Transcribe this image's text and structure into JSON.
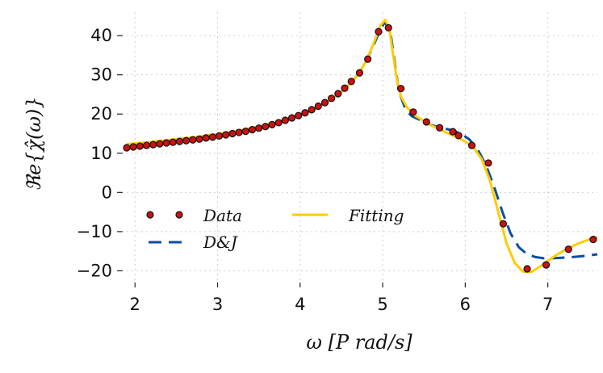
{
  "chart_data": {
    "type": "line",
    "title": "",
    "xlabel": "ω  [P rad/s]",
    "ylabel": "ℜe{χ̂(ω)}",
    "xlim": [
      1.9,
      7.6
    ],
    "ylim": [
      -23,
      46
    ],
    "xticks": [
      2,
      3,
      4,
      5,
      6,
      7
    ],
    "yticks": [
      -20,
      -10,
      0,
      10,
      20,
      30,
      40
    ],
    "xtick_labels": [
      "2",
      "3",
      "4",
      "5",
      "6",
      "7"
    ],
    "ytick_labels": [
      "−20",
      "−10",
      "0",
      "10",
      "20",
      "30",
      "40"
    ],
    "grid": true,
    "legend_position": "lower-left",
    "series": [
      {
        "name": "Data",
        "style": "markers",
        "color": "#cc1111",
        "edge_color": "#111111",
        "x": [
          1.9,
          1.98,
          2.06,
          2.14,
          2.22,
          2.3,
          2.38,
          2.46,
          2.54,
          2.62,
          2.7,
          2.78,
          2.86,
          2.94,
          3.02,
          3.1,
          3.18,
          3.26,
          3.34,
          3.42,
          3.5,
          3.58,
          3.66,
          3.74,
          3.82,
          3.9,
          3.98,
          4.06,
          4.14,
          4.22,
          4.3,
          4.38,
          4.46,
          4.54,
          4.62,
          4.72,
          4.82,
          4.95,
          5.07,
          5.22,
          5.37,
          5.53,
          5.69,
          5.85,
          5.92,
          6.08,
          6.28,
          6.46,
          6.75,
          6.98,
          7.25,
          7.55
        ],
        "y": [
          11.4,
          11.6,
          11.8,
          12.0,
          12.2,
          12.4,
          12.6,
          12.8,
          13.0,
          13.2,
          13.4,
          13.6,
          13.9,
          14.1,
          14.4,
          14.7,
          15.0,
          15.3,
          15.6,
          16.0,
          16.4,
          16.8,
          17.3,
          17.8,
          18.4,
          19.0,
          19.6,
          20.3,
          21.1,
          22.0,
          22.9,
          24.0,
          25.2,
          26.6,
          28.3,
          30.5,
          34.0,
          41.0,
          42.0,
          26.5,
          20.5,
          18.0,
          16.5,
          15.5,
          14.5,
          12.0,
          7.5,
          -8.0,
          -19.5,
          -18.5,
          -14.5,
          -12.0
        ]
      },
      {
        "name": "D&J",
        "style": "dashed",
        "color": "#0b4ea2",
        "x": [
          1.9,
          2.2,
          2.5,
          2.8,
          3.1,
          3.4,
          3.7,
          4.0,
          4.2,
          4.4,
          4.55,
          4.7,
          4.8,
          4.9,
          4.97,
          5.03,
          5.1,
          5.15,
          5.2,
          5.28,
          5.35,
          5.45,
          5.55,
          5.65,
          5.75,
          5.85,
          5.95,
          6.05,
          6.15,
          6.25,
          6.35,
          6.45,
          6.55,
          6.65,
          6.75,
          6.85,
          6.95,
          7.05,
          7.15,
          7.3,
          7.45,
          7.6
        ],
        "y": [
          11.4,
          12.2,
          13.0,
          13.8,
          14.8,
          16.0,
          17.5,
          19.7,
          21.5,
          24.0,
          26.5,
          30.0,
          33.5,
          38.0,
          41.5,
          43.5,
          40.0,
          32.5,
          25.5,
          21.0,
          19.5,
          18.5,
          17.5,
          16.8,
          16.3,
          15.8,
          15.0,
          13.5,
          11.0,
          7.0,
          1.5,
          -5.0,
          -10.5,
          -14.0,
          -15.8,
          -16.5,
          -16.8,
          -16.8,
          -16.7,
          -16.5,
          -16.2,
          -15.8
        ]
      },
      {
        "name": "Fitting",
        "style": "solid",
        "color": "#ffcc00",
        "x": [
          1.9,
          2.2,
          2.5,
          2.8,
          3.1,
          3.4,
          3.7,
          4.0,
          4.2,
          4.4,
          4.55,
          4.7,
          4.8,
          4.9,
          4.97,
          5.03,
          5.08,
          5.12,
          5.17,
          5.22,
          5.3,
          5.4,
          5.5,
          5.6,
          5.7,
          5.8,
          5.9,
          6.0,
          6.1,
          6.2,
          6.3,
          6.4,
          6.5,
          6.6,
          6.7,
          6.8,
          6.9,
          7.0,
          7.1,
          7.2,
          7.35,
          7.5,
          7.6
        ],
        "y": [
          12.3,
          12.9,
          13.6,
          14.3,
          15.2,
          16.3,
          17.8,
          19.8,
          21.6,
          24.0,
          26.5,
          30.0,
          33.5,
          38.5,
          42.5,
          44.0,
          42.0,
          36.0,
          29.0,
          24.5,
          21.5,
          19.5,
          18.2,
          17.0,
          16.0,
          15.0,
          14.0,
          13.0,
          11.5,
          8.5,
          3.0,
          -5.0,
          -13.0,
          -18.0,
          -20.2,
          -20.3,
          -19.0,
          -17.5,
          -16.0,
          -14.8,
          -13.2,
          -12.0,
          -11.4
        ]
      }
    ],
    "legend": {
      "entries": [
        {
          "label": "Data",
          "series": 0
        },
        {
          "label": "D&J",
          "series": 1
        },
        {
          "label": "Fitting",
          "series": 2
        }
      ]
    }
  }
}
